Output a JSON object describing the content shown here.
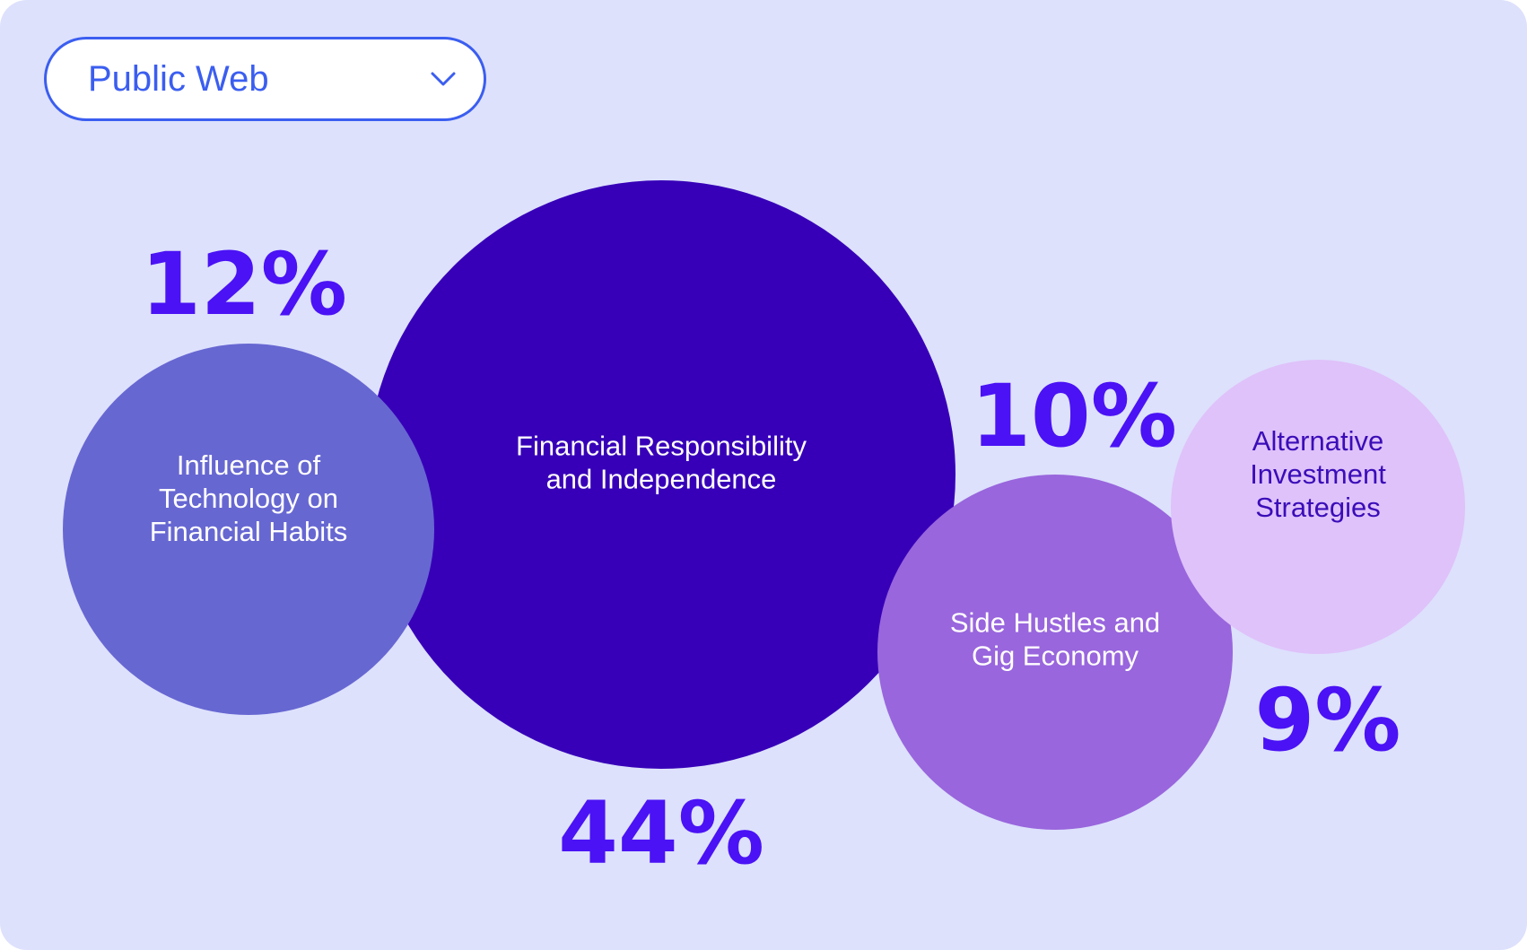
{
  "filter": {
    "selected": "Public Web",
    "chevron_icon": "chevron-down-icon"
  },
  "colors": {
    "background": "#dde1fc",
    "accent": "#3b5ef0",
    "value_text": "#4a12f5"
  },
  "chart_data": {
    "type": "bubble",
    "unit": "%",
    "series": [
      {
        "label_lines": [
          "Influence of",
          "Technology on",
          "Financial Habits"
        ],
        "value": 12,
        "display": "12%",
        "color": "#6767d2",
        "text_color": "#ffffff"
      },
      {
        "label_lines": [
          "Financial Responsibility",
          "and Independence"
        ],
        "value": 44,
        "display": "44%",
        "color": "#3700b8",
        "text_color": "#ffffff"
      },
      {
        "label_lines": [
          "Side Hustles and",
          "Gig Economy"
        ],
        "value": 10,
        "display": "10%",
        "color": "#9966dd",
        "text_color": "#ffffff"
      },
      {
        "label_lines": [
          "Alternative",
          "Investment",
          "Strategies"
        ],
        "value": 9,
        "display": "9%",
        "color": "#dfc2fa",
        "text_color": "#3a0db8"
      }
    ]
  }
}
